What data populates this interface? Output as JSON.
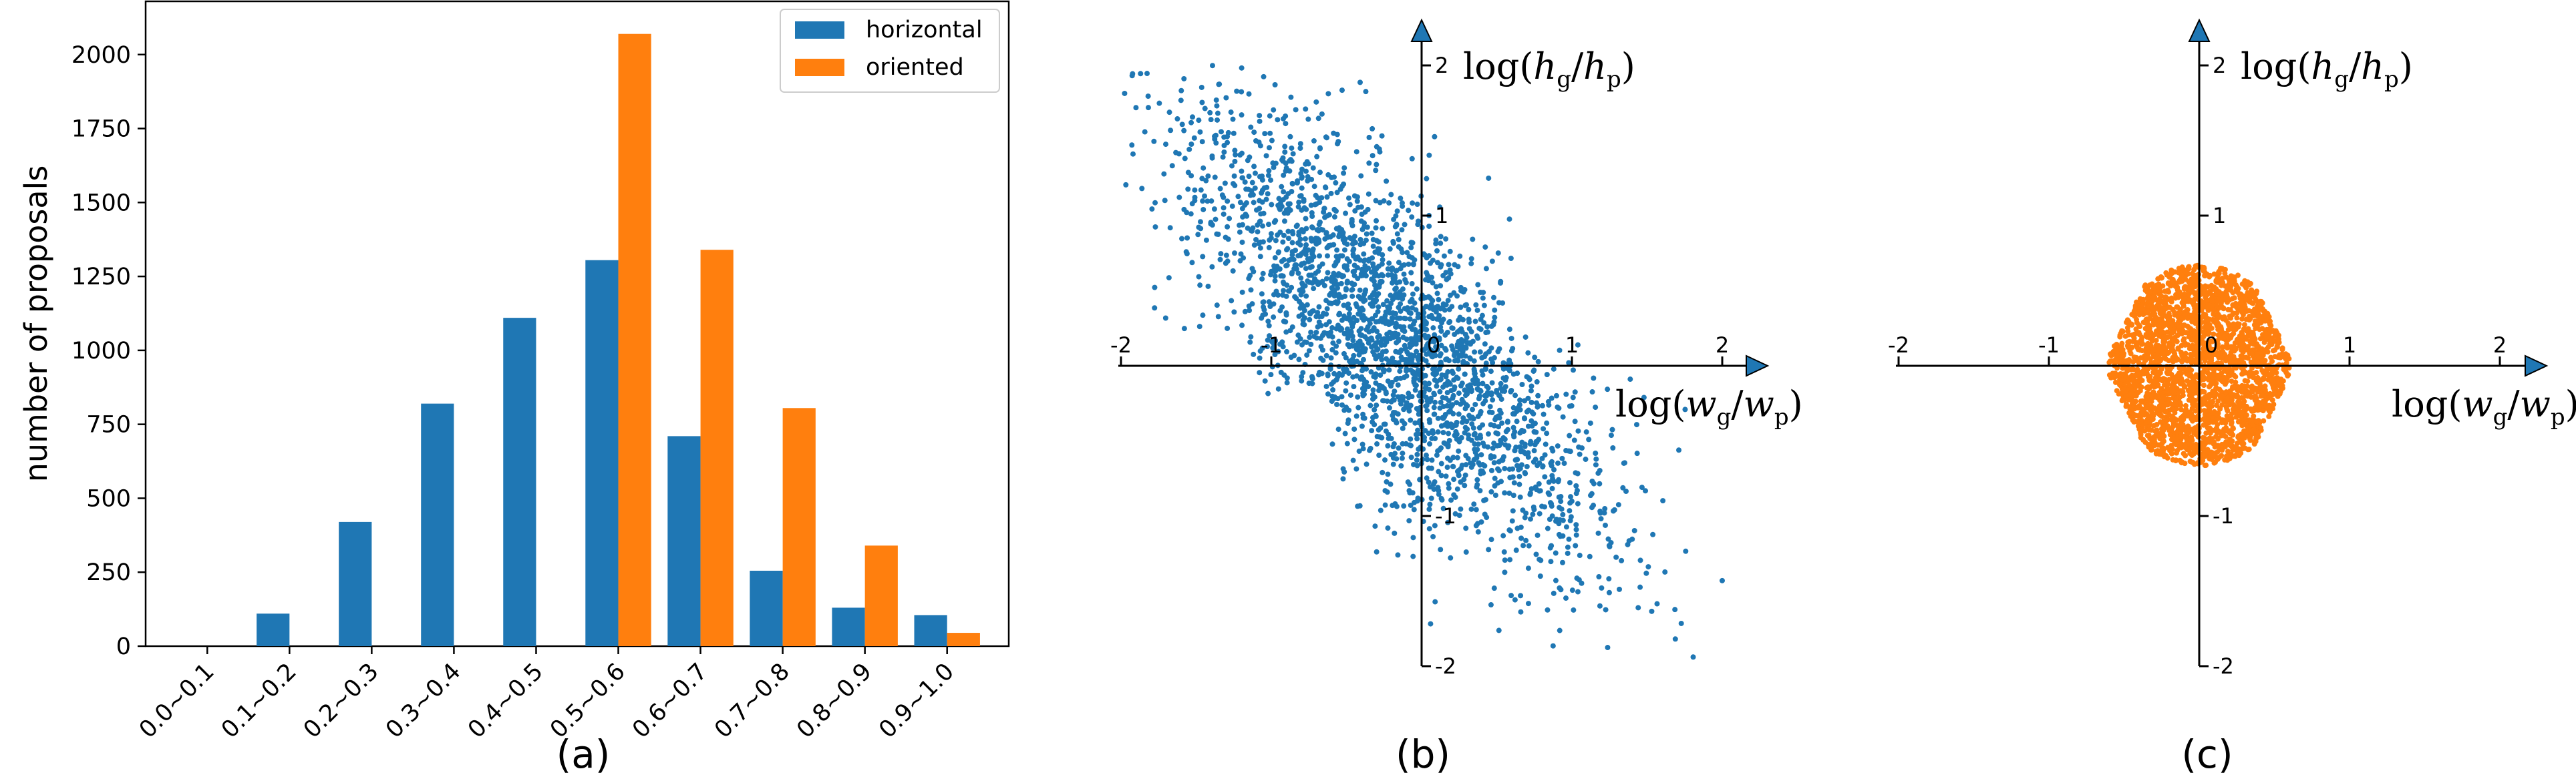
{
  "colors": {
    "horizontal": "#1f77b4",
    "oriented": "#ff7f0e",
    "axis": "#000000"
  },
  "chart_data": [
    {
      "type": "bar",
      "panel_label": "(a)",
      "categories": [
        "0.0~0.1",
        "0.1~0.2",
        "0.2~0.3",
        "0.3~0.4",
        "0.4~0.5",
        "0.5~0.6",
        "0.6~0.7",
        "0.7~0.8",
        "0.8~0.9",
        "0.9~1.0"
      ],
      "series": [
        {
          "name": "horizontal",
          "values": [
            0,
            110,
            420,
            820,
            1110,
            1305,
            710,
            255,
            130,
            105
          ]
        },
        {
          "name": "oriented",
          "values": [
            0,
            0,
            0,
            0,
            0,
            2070,
            1340,
            805,
            340,
            45
          ]
        }
      ],
      "ylabel": "number of proposals",
      "xlabel": "",
      "ylim": [
        0,
        2180
      ],
      "yticks": [
        "0",
        "250",
        "500",
        "750",
        "1000",
        "1250",
        "1500",
        "1750",
        "2000"
      ],
      "legend": "top-right"
    },
    {
      "type": "scatter",
      "panel_label": "(b)",
      "color": "horizontal",
      "xlabel_parts": {
        "pre": "log(",
        "a": "w",
        "a_sub": "g",
        "b": "w",
        "b_sub": "p",
        "post": ")"
      },
      "ylabel_parts": {
        "pre": "log(",
        "a": "h",
        "a_sub": "g",
        "b": "h",
        "b_sub": "p",
        "post": ")"
      },
      "xlim": [
        -2,
        2
      ],
      "ylim": [
        -2,
        2
      ],
      "xticks": [
        "-2",
        "-1",
        "0",
        "1",
        "2"
      ],
      "yticks": [
        "2",
        "1",
        "-1",
        "-2"
      ],
      "distribution": {
        "n_points": 2600,
        "mean": [
          -0.2,
          0.2
        ],
        "corr": -0.75,
        "sd": [
          0.7,
          0.75
        ]
      }
    },
    {
      "type": "scatter",
      "panel_label": "(c)",
      "color": "oriented",
      "xlabel_parts": {
        "pre": "log(",
        "a": "w",
        "a_sub": "g",
        "b": "w",
        "b_sub": "p",
        "post": ")"
      },
      "ylabel_parts": {
        "pre": "log(",
        "a": "h",
        "a_sub": "g",
        "b": "h",
        "b_sub": "p",
        "post": ")"
      },
      "xlim": [
        -2,
        2
      ],
      "ylim": [
        -2,
        2
      ],
      "xticks": [
        "-2",
        "-1",
        "0",
        "1",
        "2"
      ],
      "yticks": [
        "2",
        "1",
        "-1",
        "-2"
      ],
      "distribution": {
        "n_points": 2600,
        "center": [
          0,
          0
        ],
        "half_width": 0.6,
        "half_height": 0.67
      }
    }
  ]
}
